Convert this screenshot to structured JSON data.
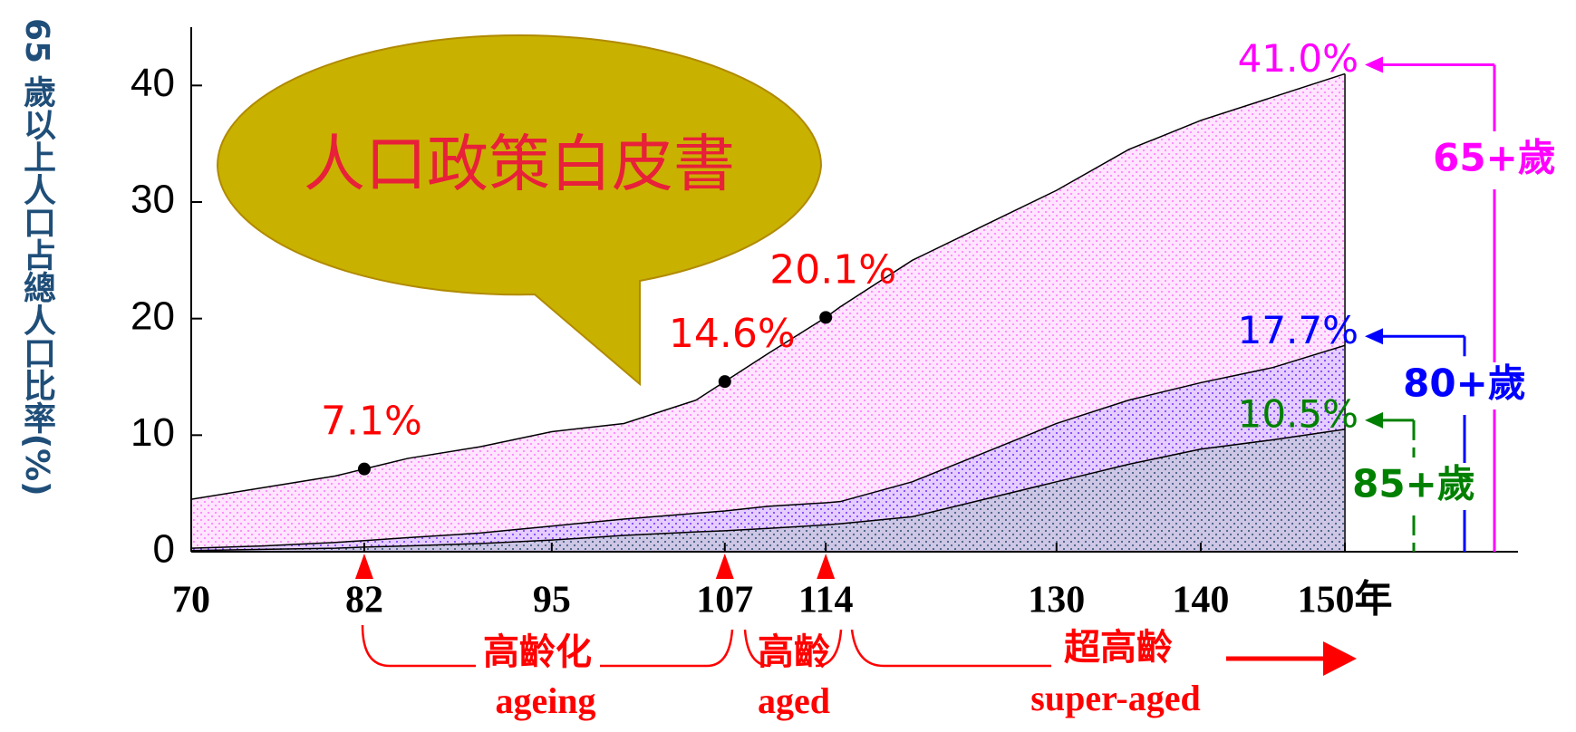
{
  "chart_data": {
    "type": "area",
    "y_axis_label": "65 歲以上人口占總人口比率(%)",
    "callout": "人口政策白皮書",
    "x": [
      70,
      75,
      80,
      82,
      85,
      90,
      95,
      100,
      105,
      107,
      110,
      114,
      115,
      120,
      125,
      130,
      135,
      140,
      145,
      150
    ],
    "series": [
      {
        "name": "65+歲",
        "color": "#ff00ff",
        "values": [
          4.5,
          5.5,
          6.5,
          7.1,
          8,
          9,
          10.3,
          11,
          13,
          14.6,
          17,
          20.1,
          21,
          25,
          28,
          31,
          34.5,
          37,
          39,
          41.0
        ],
        "value_labels": [
          null,
          null,
          null,
          "7.1%",
          null,
          null,
          null,
          null,
          null,
          "14.6%",
          null,
          "20.1%",
          null,
          null,
          null,
          null,
          null,
          null,
          null,
          "41.0%"
        ]
      },
      {
        "name": "80+歲",
        "color": "#0000ff",
        "values": [
          0.3,
          0.5,
          0.8,
          0.95,
          1.2,
          1.6,
          2.2,
          2.8,
          3.3,
          3.5,
          3.9,
          4.2,
          4.3,
          6,
          8.5,
          11,
          13,
          14.5,
          15.8,
          17.7
        ],
        "value_labels": [
          null,
          null,
          null,
          null,
          null,
          null,
          null,
          null,
          null,
          null,
          null,
          null,
          null,
          null,
          null,
          null,
          null,
          null,
          null,
          "17.7%"
        ]
      },
      {
        "name": "85+歲",
        "color": "#008000",
        "values": [
          0.1,
          0.2,
          0.3,
          0.4,
          0.5,
          0.7,
          1,
          1.4,
          1.7,
          1.8,
          2,
          2.3,
          2.4,
          3,
          4.5,
          6,
          7.5,
          8.8,
          9.6,
          10.5
        ],
        "value_labels": [
          null,
          null,
          null,
          null,
          null,
          null,
          null,
          null,
          null,
          null,
          null,
          null,
          null,
          null,
          null,
          null,
          null,
          null,
          null,
          "10.5%"
        ]
      }
    ],
    "xlim": [
      70,
      162
    ],
    "ylim": [
      0,
      45
    ],
    "xticks": [
      70,
      82,
      95,
      107,
      114,
      130,
      140,
      {
        "value": 150,
        "label": "150年"
      }
    ],
    "yticks": [
      0,
      10,
      20,
      30,
      40
    ],
    "stages": [
      {
        "label": "高齡化",
        "label_en": "ageing"
      },
      {
        "label": "高齡",
        "label_en": "aged"
      },
      {
        "label": "超高齡",
        "label_en": "super-aged"
      }
    ]
  }
}
